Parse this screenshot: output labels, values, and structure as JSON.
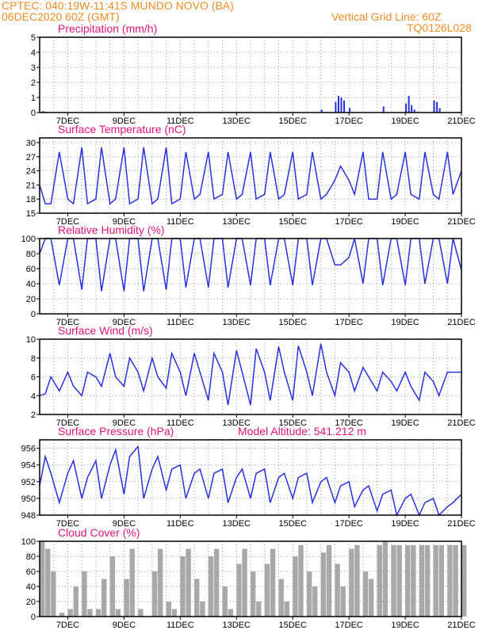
{
  "header": {
    "line1_left": "CPTEC:   040:19W-11:41S   MUNDO NOVO (BA)",
    "line2_left": "06DEC2020 60Z (GMT)",
    "line2_right": "Vertical Grid Line: 60Z",
    "line3_right": "TQ0126L028"
  },
  "colors": {
    "header": "#f08c28",
    "title": "#e0147c",
    "line": "#2830e0",
    "bar": "#2830e0",
    "cloud": "#a8a8a8",
    "grid": "#9a9a9a"
  },
  "x_ticks": [
    "7DEC",
    "9DEC",
    "11DEC",
    "13DEC",
    "15DEC",
    "17DEC",
    "19DEC",
    "21DEC"
  ],
  "chart_data": [
    {
      "type": "bar",
      "title": "Precipitation (mm/h)",
      "ylim": [
        0,
        5
      ],
      "yticks": [
        "0",
        "1",
        "2",
        "3",
        "4",
        "5"
      ],
      "x_range_days": [
        6.0,
        21.0
      ],
      "grid": true,
      "series": [
        {
          "x": [
            6.1,
            6.2,
            16.0,
            16.5,
            16.6,
            16.7,
            16.8,
            17.0,
            18.2,
            19.0,
            19.1,
            19.2,
            19.3,
            20.0,
            20.1,
            20.2
          ],
          "values": [
            0.1,
            0.05,
            0.2,
            0.7,
            1.1,
            1.0,
            0.8,
            0.3,
            0.4,
            0.6,
            1.1,
            0.5,
            0.2,
            0.8,
            0.7,
            0.3
          ]
        }
      ]
    },
    {
      "type": "line",
      "title": "Surface Temperature (nC)",
      "ylim": [
        15,
        31
      ],
      "yticks": [
        "15",
        "18",
        "21",
        "24",
        "27",
        "30"
      ],
      "grid": true,
      "series": [
        {
          "x": [
            6.0,
            6.2,
            6.4,
            6.7,
            7.0,
            7.2,
            7.5,
            7.7,
            8.0,
            8.2,
            8.5,
            8.7,
            9.0,
            9.2,
            9.5,
            9.7,
            10.0,
            10.2,
            10.5,
            10.7,
            11.0,
            11.2,
            11.5,
            11.7,
            12.0,
            12.2,
            12.5,
            12.7,
            13.0,
            13.2,
            13.5,
            13.7,
            14.0,
            14.2,
            14.5,
            14.7,
            15.0,
            15.2,
            15.5,
            15.7,
            16.0,
            16.2,
            16.5,
            16.7,
            17.0,
            17.2,
            17.5,
            17.7,
            18.0,
            18.2,
            18.5,
            18.7,
            19.0,
            19.2,
            19.5,
            19.7,
            20.0,
            20.2,
            20.5,
            20.7,
            21.0
          ],
          "values": [
            21,
            17,
            17,
            28,
            18,
            17,
            29,
            17,
            18,
            29,
            17,
            18,
            29,
            17,
            18,
            29,
            17,
            18,
            29,
            17,
            18,
            28,
            18,
            19,
            28,
            18,
            19,
            28,
            18,
            19,
            28,
            18,
            19,
            28,
            18,
            19,
            28,
            18,
            19,
            28,
            18,
            19,
            22,
            25,
            22,
            19,
            28,
            18,
            18,
            28,
            18,
            19,
            28,
            19,
            18,
            28,
            19,
            18,
            28,
            19,
            24
          ]
        }
      ]
    },
    {
      "type": "line",
      "title": "Relative Humidity (%)",
      "ylim": [
        0,
        100
      ],
      "yticks": [
        "0",
        "20",
        "40",
        "60",
        "80",
        "100"
      ],
      "grid": true,
      "series": [
        {
          "x": [
            6.0,
            6.2,
            6.4,
            6.7,
            7.0,
            7.2,
            7.5,
            7.7,
            8.0,
            8.2,
            8.5,
            8.7,
            9.0,
            9.2,
            9.5,
            9.7,
            10.0,
            10.2,
            10.5,
            10.7,
            11.0,
            11.2,
            11.5,
            11.7,
            12.0,
            12.2,
            12.5,
            12.7,
            13.0,
            13.2,
            13.5,
            13.7,
            14.0,
            14.2,
            14.5,
            14.7,
            15.0,
            15.2,
            15.5,
            15.7,
            16.0,
            16.2,
            16.5,
            16.7,
            17.0,
            17.2,
            17.5,
            17.7,
            18.0,
            18.2,
            18.5,
            18.7,
            19.0,
            19.2,
            19.5,
            19.7,
            20.0,
            20.2,
            20.5,
            20.7,
            21.0
          ],
          "values": [
            80,
            100,
            100,
            38,
            100,
            100,
            32,
            100,
            100,
            30,
            100,
            100,
            30,
            100,
            100,
            30,
            100,
            100,
            32,
            100,
            100,
            35,
            100,
            100,
            35,
            100,
            100,
            35,
            100,
            100,
            38,
            100,
            100,
            38,
            100,
            100,
            38,
            100,
            100,
            38,
            100,
            100,
            65,
            65,
            75,
            100,
            40,
            100,
            100,
            38,
            100,
            100,
            38,
            100,
            100,
            40,
            100,
            100,
            40,
            100,
            58
          ]
        }
      ]
    },
    {
      "type": "line",
      "title": "Surface Wind (m/s)",
      "ylim": [
        2,
        10
      ],
      "yticks": [
        "2",
        "4",
        "6",
        "8",
        "10"
      ],
      "grid": true,
      "series": [
        {
          "x": [
            6.0,
            6.2,
            6.4,
            6.7,
            7.0,
            7.2,
            7.5,
            7.7,
            8.0,
            8.2,
            8.5,
            8.7,
            9.0,
            9.2,
            9.5,
            9.7,
            10.0,
            10.2,
            10.5,
            10.7,
            11.0,
            11.2,
            11.5,
            11.7,
            12.0,
            12.2,
            12.5,
            12.7,
            13.0,
            13.2,
            13.5,
            13.7,
            14.0,
            14.2,
            14.5,
            14.7,
            15.0,
            15.2,
            15.5,
            15.7,
            16.0,
            16.2,
            16.5,
            16.7,
            17.0,
            17.2,
            17.5,
            17.7,
            18.0,
            18.2,
            18.5,
            18.7,
            19.0,
            19.2,
            19.5,
            19.7,
            20.0,
            20.2,
            20.5,
            20.7,
            21.0
          ],
          "values": [
            4,
            4.2,
            6,
            4.5,
            6.5,
            5,
            4,
            6.5,
            6,
            5,
            8.5,
            6,
            5,
            8,
            6.5,
            4.5,
            8,
            6,
            4.8,
            8.5,
            6.5,
            4,
            8.5,
            6.5,
            3.5,
            8.5,
            6.5,
            3,
            8.8,
            6.5,
            3,
            9,
            6.5,
            3.5,
            9.2,
            6.5,
            3.5,
            9.3,
            6.5,
            4,
            9.5,
            6.5,
            4,
            7.5,
            6.5,
            4.5,
            7,
            6,
            4.5,
            6.5,
            5.5,
            4.5,
            6.5,
            5,
            3.5,
            6.5,
            5.5,
            4,
            6.5,
            6.5,
            6.5
          ]
        }
      ]
    },
    {
      "type": "line",
      "title": "Surface Pressure (hPa)",
      "annotation": "Model Altitude: 541.212 m",
      "ylim": [
        948,
        957
      ],
      "yticks": [
        "948",
        "950",
        "952",
        "954",
        "956"
      ],
      "grid": true,
      "series": [
        {
          "x": [
            6.0,
            6.2,
            6.4,
            6.7,
            7.0,
            7.2,
            7.5,
            7.7,
            8.0,
            8.2,
            8.5,
            8.7,
            9.0,
            9.2,
            9.5,
            9.7,
            10.0,
            10.2,
            10.5,
            10.7,
            11.0,
            11.2,
            11.5,
            11.7,
            12.0,
            12.2,
            12.5,
            12.7,
            13.0,
            13.2,
            13.5,
            13.7,
            14.0,
            14.2,
            14.5,
            14.7,
            15.0,
            15.2,
            15.5,
            15.7,
            16.0,
            16.2,
            16.5,
            16.7,
            17.0,
            17.2,
            17.5,
            17.7,
            18.0,
            18.2,
            18.5,
            18.7,
            19.0,
            19.2,
            19.5,
            19.7,
            20.0,
            20.2,
            20.5,
            20.7,
            21.0
          ],
          "values": [
            951.5,
            955,
            953,
            949.5,
            953,
            954.5,
            950,
            952.5,
            954.5,
            950,
            954,
            955.8,
            950.5,
            955,
            956.2,
            950,
            953.5,
            955,
            951,
            953.5,
            954,
            950,
            953,
            953.5,
            950,
            953,
            953.5,
            949.5,
            952.5,
            953.5,
            950,
            953,
            953.5,
            949.5,
            952.5,
            953,
            950,
            952.5,
            953,
            949.5,
            952,
            952.5,
            949.5,
            951.5,
            952,
            949,
            951,
            951.5,
            948.5,
            950.5,
            951,
            948,
            950,
            950.5,
            948,
            949.5,
            950,
            948,
            949,
            949.5,
            950.5
          ]
        }
      ]
    },
    {
      "type": "bar",
      "title": "Cloud Cover (%)",
      "ylim": [
        0,
        100
      ],
      "yticks": [
        "0",
        "20",
        "40",
        "60",
        "80",
        "100"
      ],
      "grid": true,
      "series": [
        {
          "x": [
            6.0,
            6.2,
            6.4,
            6.7,
            7.0,
            7.2,
            7.5,
            7.7,
            8.0,
            8.2,
            8.5,
            8.7,
            9.0,
            9.2,
            9.5,
            9.7,
            10.0,
            10.2,
            10.5,
            10.7,
            11.0,
            11.2,
            11.5,
            11.7,
            12.0,
            12.2,
            12.5,
            12.7,
            13.0,
            13.2,
            13.5,
            13.7,
            14.0,
            14.2,
            14.5,
            14.7,
            15.0,
            15.2,
            15.5,
            15.7,
            16.0,
            16.2,
            16.5,
            16.7,
            17.0,
            17.2,
            17.5,
            17.7,
            18.0,
            18.2,
            18.5,
            18.7,
            19.0,
            19.2,
            19.5,
            19.7,
            20.0,
            20.2,
            20.5,
            20.7,
            21.0
          ],
          "values": [
            100,
            90,
            60,
            5,
            10,
            40,
            60,
            10,
            10,
            50,
            80,
            10,
            50,
            90,
            10,
            0,
            60,
            90,
            20,
            10,
            80,
            90,
            50,
            20,
            80,
            90,
            40,
            10,
            70,
            90,
            60,
            20,
            70,
            90,
            50,
            20,
            80,
            95,
            60,
            40,
            85,
            95,
            70,
            40,
            90,
            95,
            60,
            50,
            95,
            100,
            95,
            95,
            95,
            95,
            95,
            95,
            95,
            95,
            95,
            95,
            95
          ]
        }
      ]
    }
  ]
}
